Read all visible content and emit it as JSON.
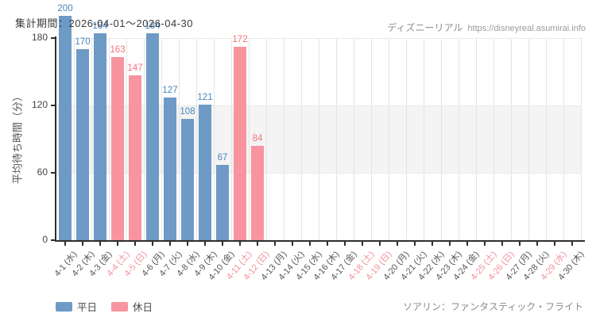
{
  "header": {
    "watermark_site": "ディズニーリアル",
    "watermark_url": "https://disneyreal.asumirai.info"
  },
  "footer": {
    "attraction": "ソアリン：ファンタスティック・フライト"
  },
  "chart_data": {
    "type": "bar",
    "title": "集計期間：2026-04-01～2026-04-30",
    "ylabel": "平均待ち時間（分）",
    "xlabel": "",
    "yticks": [
      0,
      60,
      120,
      180
    ],
    "ylim": [
      0,
      180
    ],
    "shaded_band": [
      60,
      120
    ],
    "grid": true,
    "legend_position": "bottom-left",
    "legend": [
      {
        "label": "平日",
        "type": "weekday"
      },
      {
        "label": "休日",
        "type": "holiday"
      }
    ],
    "categories": [
      "4-1 (水)",
      "4-2 (木)",
      "4-3 (金)",
      "4-4 (土)",
      "4-5 (日)",
      "4-6 (月)",
      "4-7 (火)",
      "4-8 (水)",
      "4-9 (木)",
      "4-10 (金)",
      "4-11 (土)",
      "4-12 (日)",
      "4-13 (月)",
      "4-14 (火)",
      "4-15 (水)",
      "4-16 (木)",
      "4-17 (金)",
      "4-18 (土)",
      "4-19 (日)",
      "4-20 (月)",
      "4-21 (火)",
      "4-22 (水)",
      "4-23 (木)",
      "4-24 (金)",
      "4-25 (土)",
      "4-26 (日)",
      "4-27 (月)",
      "4-28 (火)",
      "4-29 (水)",
      "4-30 (木)"
    ],
    "values": [
      200,
      170,
      184,
      163,
      147,
      184,
      127,
      108,
      121,
      67,
      172,
      84,
      null,
      null,
      null,
      null,
      null,
      null,
      null,
      null,
      null,
      null,
      null,
      null,
      null,
      null,
      null,
      null,
      null,
      null
    ],
    "day_types": [
      "w",
      "w",
      "w",
      "h",
      "h",
      "w",
      "w",
      "w",
      "w",
      "w",
      "h",
      "h",
      "w",
      "w",
      "w",
      "w",
      "w",
      "h",
      "h",
      "w",
      "w",
      "w",
      "w",
      "w",
      "h",
      "h",
      "w",
      "w",
      "h",
      "w"
    ],
    "colors": {
      "weekday_bar": "#6e9ac6",
      "holiday_bar": "#f8949f",
      "weekday_value": "#4886bf",
      "holiday_value": "#f4737f",
      "weekday_tick_label": "#555555",
      "holiday_tick_label": "#f29099",
      "axis": "#2f2f2f",
      "grid_vertical": "#e4e4e4",
      "grid_horizontal": "#e9e9e9",
      "band_fill": "#f3f4f3"
    }
  }
}
